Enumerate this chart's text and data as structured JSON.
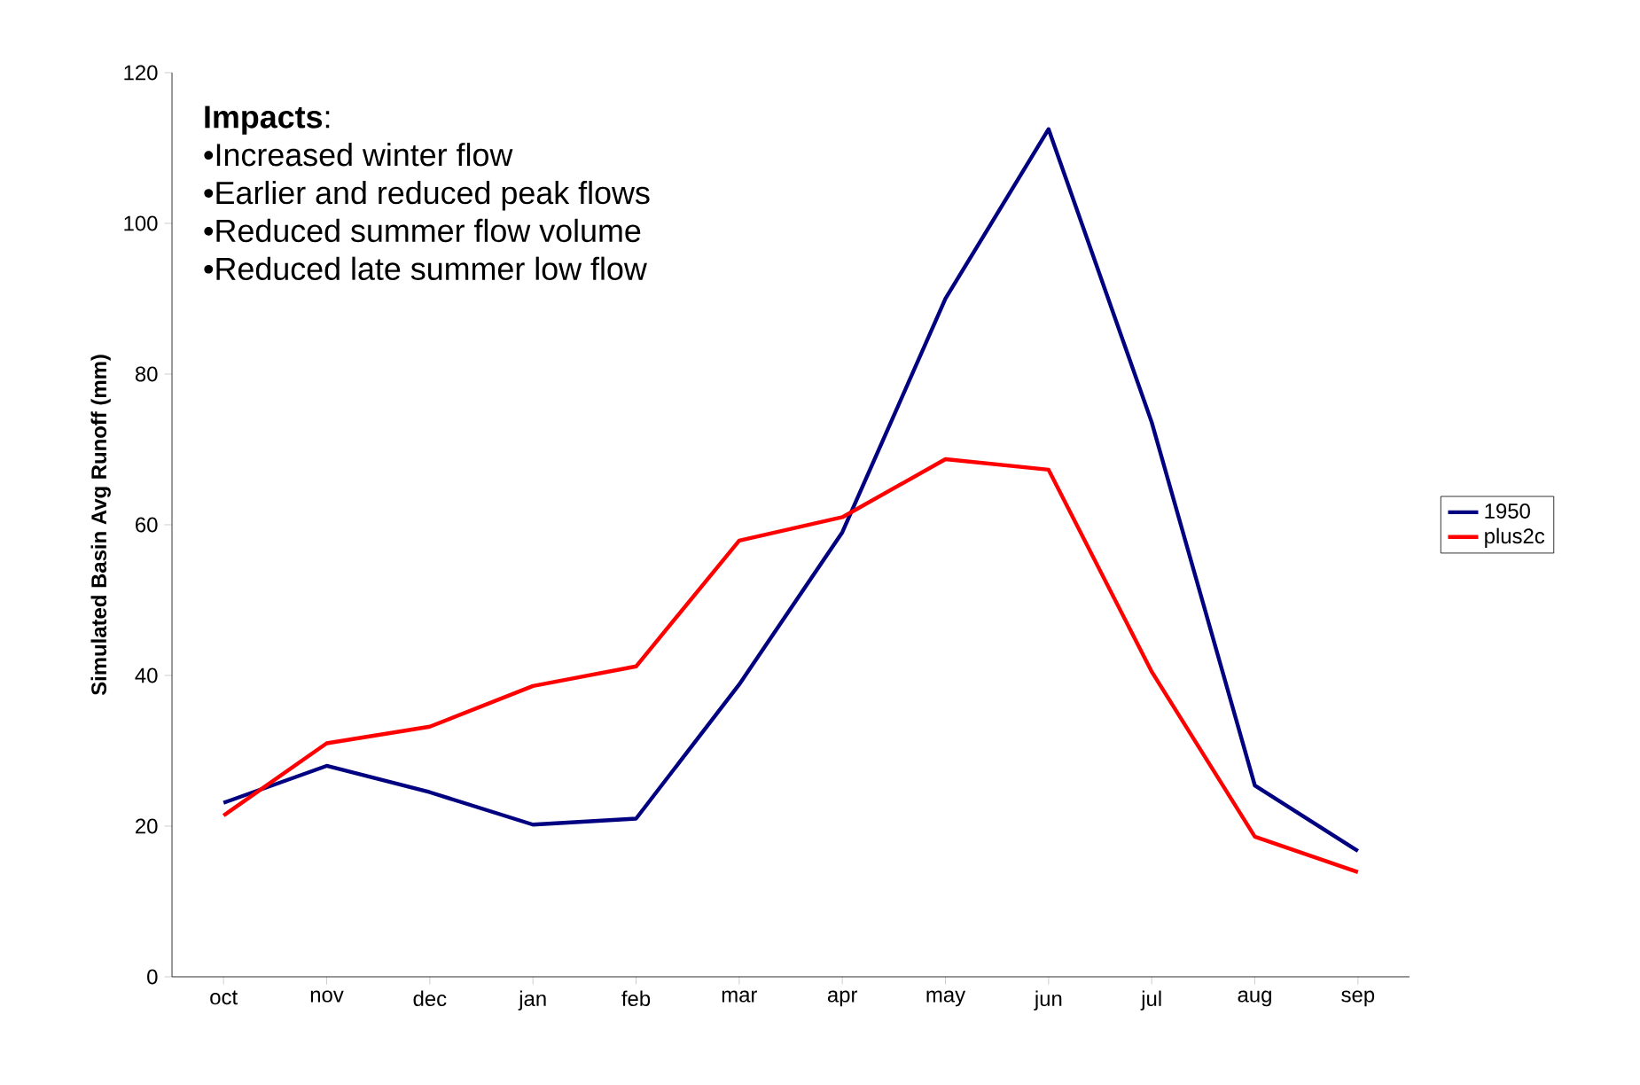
{
  "chart_data": {
    "type": "line",
    "ylabel": "Simulated Basin Avg Runoff (mm)",
    "categories": [
      "oct",
      "nov",
      "dec",
      "jan",
      "feb",
      "mar",
      "apr",
      "may",
      "jun",
      "jul",
      "aug",
      "sep"
    ],
    "series": [
      {
        "name": "1950",
        "color": "#000080",
        "values": [
          23.1,
          28,
          24.5,
          20.2,
          21,
          38.8,
          59,
          90,
          112.5,
          73.6,
          25.4,
          16.7
        ]
      },
      {
        "name": "plus2c",
        "color": "#ff0000",
        "values": [
          21.4,
          31,
          33.2,
          38.6,
          41.2,
          57.9,
          61,
          68.7,
          67.3,
          40.5,
          18.6,
          13.9
        ]
      }
    ],
    "ylim": [
      0,
      120
    ],
    "yticks": [
      0,
      20,
      40,
      60,
      80,
      100,
      120
    ],
    "annotations": [
      "**Impacts**:",
      "•Increased winter flow",
      "•Earlier and reduced peak flows",
      "•Reduced summer flow volume",
      "•Reduced late summer low flow"
    ],
    "legend": "right",
    "grid": false,
    "marker": "none",
    "line_style": "solid"
  }
}
